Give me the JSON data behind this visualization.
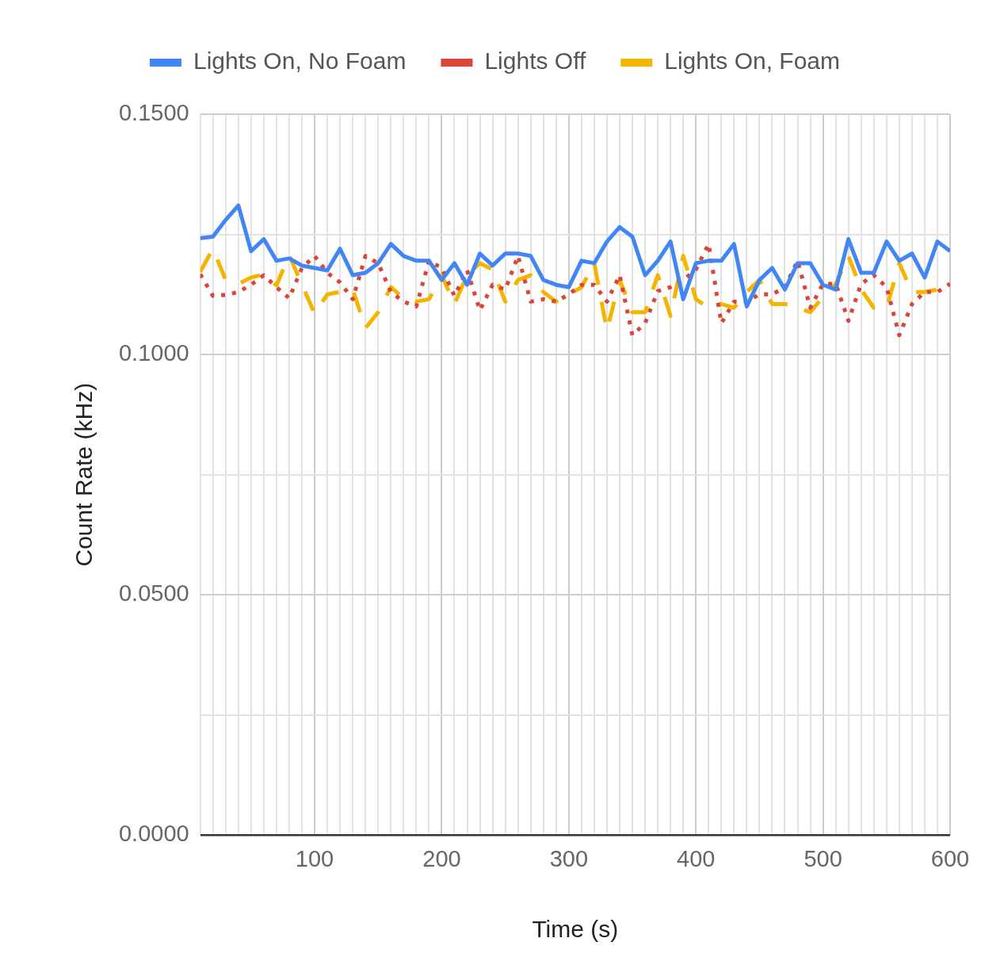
{
  "chart_data": {
    "type": "line",
    "xlabel": "Time (s)",
    "ylabel": "Count Rate (kHz)",
    "x": [
      10,
      20,
      30,
      40,
      50,
      60,
      70,
      80,
      90,
      100,
      110,
      120,
      130,
      140,
      150,
      160,
      170,
      180,
      190,
      200,
      210,
      220,
      230,
      240,
      250,
      260,
      270,
      280,
      290,
      300,
      310,
      320,
      330,
      340,
      350,
      360,
      370,
      380,
      390,
      400,
      410,
      420,
      430,
      440,
      450,
      460,
      470,
      480,
      490,
      500,
      510,
      520,
      530,
      540,
      550,
      560,
      570,
      580,
      590,
      600
    ],
    "series": [
      {
        "name": "Lights On, No Foam",
        "color": "#4285f4",
        "line_style": "solid",
        "values": [
          0.1242,
          0.1245,
          0.128,
          0.131,
          0.1215,
          0.124,
          0.1195,
          0.12,
          0.1185,
          0.118,
          0.1175,
          0.122,
          0.1165,
          0.117,
          0.119,
          0.123,
          0.1205,
          0.1195,
          0.1195,
          0.1155,
          0.119,
          0.1145,
          0.121,
          0.1185,
          0.121,
          0.121,
          0.1205,
          0.1155,
          0.1145,
          0.114,
          0.1195,
          0.119,
          0.1235,
          0.1265,
          0.1245,
          0.1165,
          0.1195,
          0.1235,
          0.1115,
          0.119,
          0.1195,
          0.1195,
          0.123,
          0.11,
          0.1155,
          0.118,
          0.1135,
          0.119,
          0.119,
          0.1145,
          0.1135,
          0.124,
          0.117,
          0.117,
          0.1235,
          0.1195,
          0.121,
          0.116,
          0.1235,
          0.1215
        ]
      },
      {
        "name": "Lights Off",
        "color": "#db4437",
        "line_style": "dotted",
        "values": [
          0.1167,
          0.1122,
          0.1124,
          0.113,
          0.1145,
          0.1165,
          0.114,
          0.1117,
          0.118,
          0.1205,
          0.117,
          0.115,
          0.1115,
          0.1205,
          0.119,
          0.113,
          0.111,
          0.11,
          0.1195,
          0.118,
          0.1122,
          0.1175,
          0.1092,
          0.1145,
          0.1135,
          0.1205,
          0.111,
          0.1115,
          0.111,
          0.1125,
          0.1145,
          0.1145,
          0.111,
          0.1165,
          0.104,
          0.1065,
          0.1132,
          0.114,
          0.1155,
          0.1177,
          0.123,
          0.1065,
          0.111,
          0.111,
          0.1125,
          0.1125,
          0.114,
          0.1195,
          0.1097,
          0.1147,
          0.1147,
          0.107,
          0.1147,
          0.1165,
          0.114,
          0.104,
          0.1105,
          0.113,
          0.113,
          0.1147
        ]
      },
      {
        "name": "Lights On, Foam",
        "color": "#f4b400",
        "line_style": "dashed",
        "values": [
          0.1172,
          0.122,
          0.1155,
          0.1147,
          0.116,
          0.1167,
          0.1144,
          0.1207,
          0.1145,
          0.1085,
          0.1125,
          0.113,
          0.1135,
          0.1055,
          0.1088,
          0.114,
          0.1117,
          0.111,
          0.1115,
          0.1165,
          0.1105,
          0.1165,
          0.119,
          0.1177,
          0.111,
          0.1155,
          0.1165,
          0.113,
          0.111,
          0.1125,
          0.114,
          0.119,
          0.105,
          0.1155,
          0.1088,
          0.1088,
          0.1165,
          0.108,
          0.1205,
          0.1115,
          0.1097,
          0.1105,
          0.1097,
          0.113,
          0.1155,
          0.1105,
          0.1105,
          0.1097,
          0.1088,
          0.112,
          0.1147,
          0.1205,
          0.1135,
          0.1097,
          0.1097,
          0.119,
          0.113,
          0.113,
          0.1135,
          0.1147
        ]
      }
    ],
    "xlim": [
      10,
      600
    ],
    "xticks": [
      {
        "value": 10,
        "label": null
      },
      {
        "value": 20,
        "label": null
      },
      {
        "value": 30,
        "label": null
      },
      {
        "value": 40,
        "label": null
      },
      {
        "value": 50,
        "label": null
      },
      {
        "value": 60,
        "label": null
      },
      {
        "value": 70,
        "label": null
      },
      {
        "value": 80,
        "label": null
      },
      {
        "value": 90,
        "label": null
      },
      100,
      {
        "value": 110,
        "label": null
      },
      {
        "value": 120,
        "label": null
      },
      {
        "value": 130,
        "label": null
      },
      {
        "value": 140,
        "label": null
      },
      {
        "value": 150,
        "label": null
      },
      {
        "value": 160,
        "label": null
      },
      {
        "value": 170,
        "label": null
      },
      {
        "value": 180,
        "label": null
      },
      {
        "value": 190,
        "label": null
      },
      200,
      {
        "value": 210,
        "label": null
      },
      {
        "value": 220,
        "label": null
      },
      {
        "value": 230,
        "label": null
      },
      {
        "value": 240,
        "label": null
      },
      {
        "value": 250,
        "label": null
      },
      {
        "value": 260,
        "label": null
      },
      {
        "value": 270,
        "label": null
      },
      {
        "value": 280,
        "label": null
      },
      {
        "value": 290,
        "label": null
      },
      300,
      {
        "value": 310,
        "label": null
      },
      {
        "value": 320,
        "label": null
      },
      {
        "value": 330,
        "label": null
      },
      {
        "value": 340,
        "label": null
      },
      {
        "value": 350,
        "label": null
      },
      {
        "value": 360,
        "label": null
      },
      {
        "value": 370,
        "label": null
      },
      {
        "value": 380,
        "label": null
      },
      {
        "value": 390,
        "label": null
      },
      400,
      {
        "value": 410,
        "label": null
      },
      {
        "value": 420,
        "label": null
      },
      {
        "value": 430,
        "label": null
      },
      {
        "value": 440,
        "label": null
      },
      {
        "value": 450,
        "label": null
      },
      {
        "value": 460,
        "label": null
      },
      {
        "value": 470,
        "label": null
      },
      {
        "value": 480,
        "label": null
      },
      {
        "value": 490,
        "label": null
      },
      500,
      {
        "value": 510,
        "label": null
      },
      {
        "value": 520,
        "label": null
      },
      {
        "value": 530,
        "label": null
      },
      {
        "value": 540,
        "label": null
      },
      {
        "value": 550,
        "label": null
      },
      {
        "value": 560,
        "label": null
      },
      {
        "value": 570,
        "label": null
      },
      {
        "value": 580,
        "label": null
      },
      {
        "value": 590,
        "label": null
      },
      600
    ],
    "ylim": [
      0,
      0.15
    ],
    "yticks": [
      {
        "value": 0,
        "label": "0.0000"
      },
      {
        "value": 0.025,
        "label": null
      },
      {
        "value": 0.05,
        "label": "0.0500"
      },
      {
        "value": 0.075,
        "label": null
      },
      {
        "value": 0.1,
        "label": "0.1000"
      },
      {
        "value": 0.125,
        "label": null
      },
      {
        "value": 0.15,
        "label": "0.1500"
      }
    ],
    "grid": true,
    "legend": "top",
    "marker": "none"
  }
}
